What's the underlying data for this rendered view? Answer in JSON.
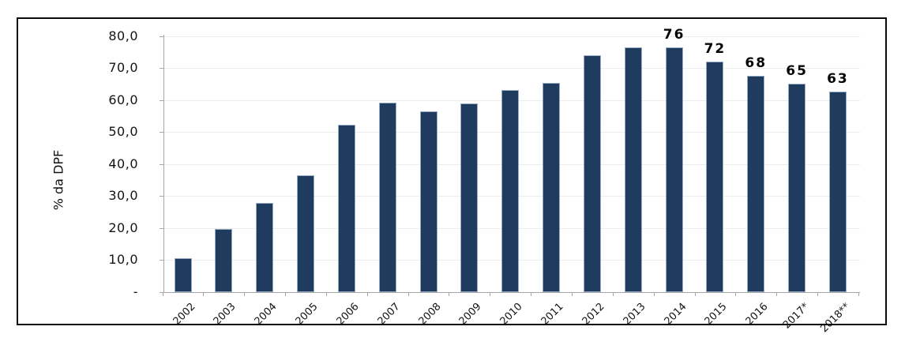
{
  "chart_data": {
    "type": "bar",
    "title": "",
    "xlabel": "",
    "ylabel": "% da DPF",
    "ylim": [
      0,
      80
    ],
    "grid": true,
    "legend": "none",
    "bar_color": "#1f3b5e",
    "bar_border_color": "#97aac4",
    "categories": [
      "2002",
      "2003",
      "2004",
      "2005",
      "2006",
      "2007",
      "2008",
      "2009",
      "2010",
      "2011",
      "2012",
      "2013",
      "2014",
      "2015",
      "2016",
      "2017*",
      "2018**"
    ],
    "values": [
      10.5,
      19.7,
      27.8,
      36.6,
      52.3,
      59.2,
      56.4,
      58.9,
      63.2,
      65.4,
      74.0,
      76.4,
      76.4,
      72.0,
      67.5,
      65.0,
      62.7
    ],
    "data_labels": [
      "",
      "",
      "",
      "",
      "",
      "",
      "",
      "",
      "",
      "",
      "",
      "",
      "76",
      "72",
      "68",
      "65",
      "63"
    ],
    "y_ticks": [
      {
        "value": 80,
        "label": "80,0"
      },
      {
        "value": 70,
        "label": "70,0"
      },
      {
        "value": 60,
        "label": "60,0"
      },
      {
        "value": 50,
        "label": "50,0"
      },
      {
        "value": 40,
        "label": "40,0"
      },
      {
        "value": 30,
        "label": "30,0"
      },
      {
        "value": 20,
        "label": "20,0"
      },
      {
        "value": 10,
        "label": "10,0"
      },
      {
        "value": 0,
        "label": "-"
      }
    ]
  }
}
